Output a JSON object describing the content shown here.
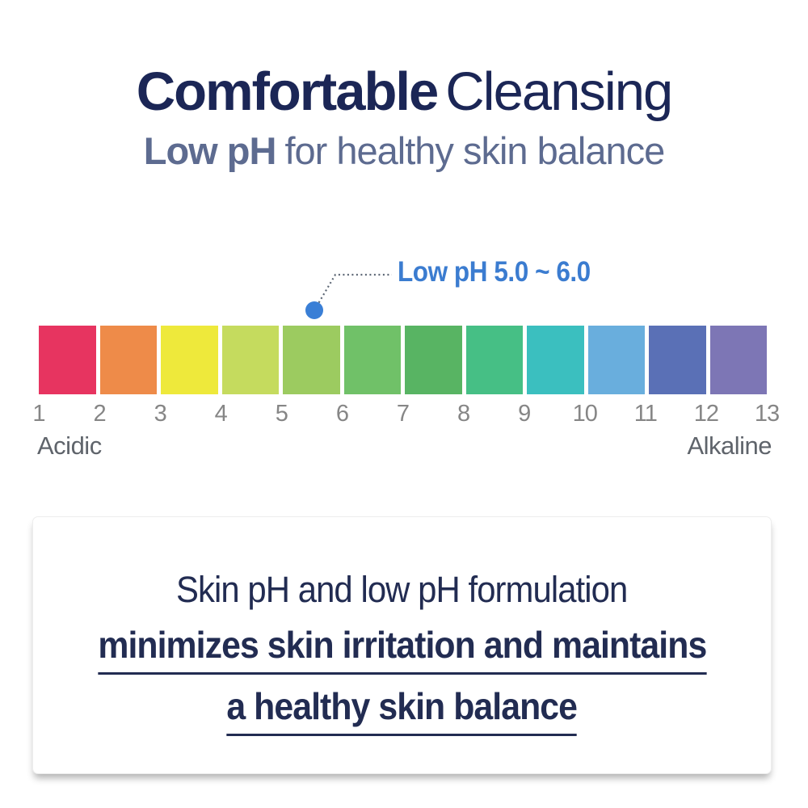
{
  "title": {
    "line1_bold": "Comfortable",
    "line1_light": "Cleansing",
    "line2_bold": "Low pH",
    "line2_light": "for healthy skin balance"
  },
  "ph_scale": {
    "annotation": "Low pH 5.0 ~ 6.0",
    "tick_labels": [
      "1",
      "2",
      "3",
      "4",
      "5",
      "6",
      "7",
      "8",
      "9",
      "10",
      "11",
      "12",
      "13"
    ],
    "swatch_colors": [
      "#e73460",
      "#ee8b49",
      "#eee93b",
      "#c5db5e",
      "#9ccb60",
      "#70c168",
      "#58b463",
      "#46bf85",
      "#3bbfbf",
      "#69aedd",
      "#5a70b6",
      "#7d76b5"
    ],
    "left_label": "Acidic",
    "right_label": "Alkaline"
  },
  "card": {
    "line1": "Skin pH and low pH formulation",
    "line2": "minimizes skin irritation and maintains",
    "line3": "a healthy skin balance"
  },
  "colors": {
    "titleNavy": "#1b2656",
    "subtitleGray": "#5d6b90",
    "annotationBlue": "#3b7cd0",
    "dotBlue": "#3a7fd6",
    "leaderGray": "#5d6775",
    "tickGray": "#868686",
    "endLabelGray": "#5f646b",
    "cardNavy": "#222c52"
  }
}
